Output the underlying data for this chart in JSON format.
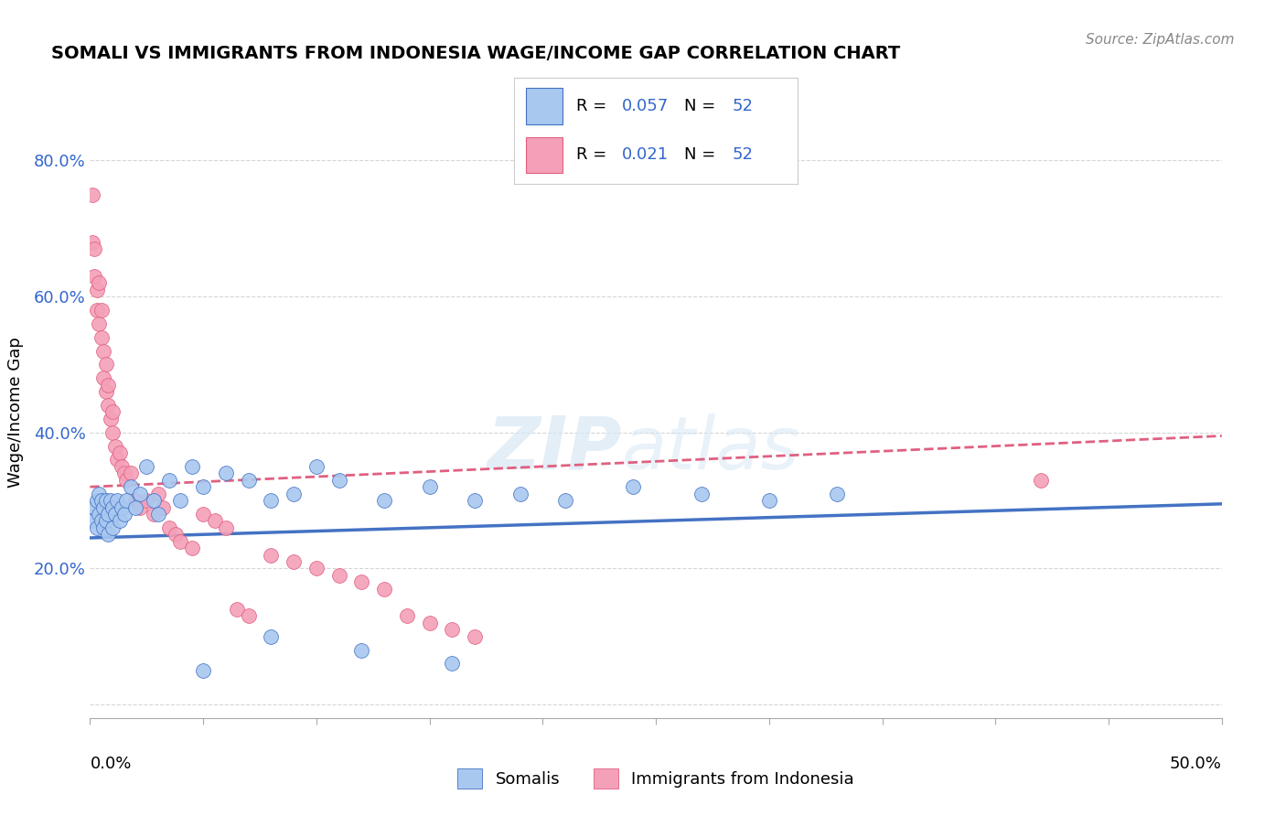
{
  "title": "SOMALI VS IMMIGRANTS FROM INDONESIA WAGE/INCOME GAP CORRELATION CHART",
  "source": "Source: ZipAtlas.com",
  "ylabel": "Wage/Income Gap",
  "watermark_zip": "ZIP",
  "watermark_atlas": "atlas",
  "xlim": [
    0.0,
    0.5
  ],
  "ylim": [
    -0.02,
    0.88
  ],
  "yticks": [
    0.0,
    0.2,
    0.4,
    0.6,
    0.8
  ],
  "ytick_labels": [
    "",
    "20.0%",
    "40.0%",
    "60.0%",
    "80.0%"
  ],
  "somali_color": "#a8c8f0",
  "indonesia_color": "#f4a0b8",
  "line_blue": "#4472c4",
  "line_pink": "#e06080",
  "background_color": "#ffffff",
  "grid_color": "#cccccc",
  "somali_x": [
    0.001,
    0.002,
    0.003,
    0.003,
    0.004,
    0.004,
    0.005,
    0.005,
    0.006,
    0.006,
    0.007,
    0.007,
    0.008,
    0.008,
    0.009,
    0.01,
    0.01,
    0.011,
    0.012,
    0.013,
    0.014,
    0.015,
    0.016,
    0.018,
    0.02,
    0.022,
    0.025,
    0.028,
    0.03,
    0.035,
    0.04,
    0.045,
    0.05,
    0.06,
    0.07,
    0.08,
    0.09,
    0.1,
    0.11,
    0.13,
    0.15,
    0.17,
    0.19,
    0.21,
    0.24,
    0.27,
    0.3,
    0.33,
    0.05,
    0.08,
    0.12,
    0.16
  ],
  "somali_y": [
    0.27,
    0.29,
    0.26,
    0.3,
    0.28,
    0.31,
    0.27,
    0.3,
    0.26,
    0.29,
    0.27,
    0.3,
    0.25,
    0.28,
    0.3,
    0.26,
    0.29,
    0.28,
    0.3,
    0.27,
    0.29,
    0.28,
    0.3,
    0.32,
    0.29,
    0.31,
    0.35,
    0.3,
    0.28,
    0.33,
    0.3,
    0.35,
    0.32,
    0.34,
    0.33,
    0.3,
    0.31,
    0.35,
    0.33,
    0.3,
    0.32,
    0.3,
    0.31,
    0.3,
    0.32,
    0.31,
    0.3,
    0.31,
    0.05,
    0.1,
    0.08,
    0.06
  ],
  "indonesia_x": [
    0.001,
    0.001,
    0.002,
    0.002,
    0.003,
    0.003,
    0.004,
    0.004,
    0.005,
    0.005,
    0.006,
    0.006,
    0.007,
    0.007,
    0.008,
    0.008,
    0.009,
    0.01,
    0.01,
    0.011,
    0.012,
    0.013,
    0.014,
    0.015,
    0.016,
    0.018,
    0.02,
    0.022,
    0.025,
    0.028,
    0.03,
    0.032,
    0.035,
    0.038,
    0.04,
    0.045,
    0.05,
    0.055,
    0.06,
    0.065,
    0.07,
    0.08,
    0.09,
    0.1,
    0.11,
    0.12,
    0.13,
    0.14,
    0.15,
    0.16,
    0.17,
    0.42
  ],
  "indonesia_y": [
    0.75,
    0.68,
    0.63,
    0.67,
    0.61,
    0.58,
    0.62,
    0.56,
    0.58,
    0.54,
    0.52,
    0.48,
    0.5,
    0.46,
    0.44,
    0.47,
    0.42,
    0.43,
    0.4,
    0.38,
    0.36,
    0.37,
    0.35,
    0.34,
    0.33,
    0.34,
    0.3,
    0.29,
    0.3,
    0.28,
    0.31,
    0.29,
    0.26,
    0.25,
    0.24,
    0.23,
    0.28,
    0.27,
    0.26,
    0.14,
    0.13,
    0.22,
    0.21,
    0.2,
    0.19,
    0.18,
    0.17,
    0.13,
    0.12,
    0.11,
    0.1,
    0.33
  ],
  "blue_line_x": [
    0.0,
    0.5
  ],
  "blue_line_y": [
    0.245,
    0.295
  ],
  "pink_line_x": [
    0.0,
    0.5
  ],
  "pink_line_y": [
    0.32,
    0.395
  ]
}
